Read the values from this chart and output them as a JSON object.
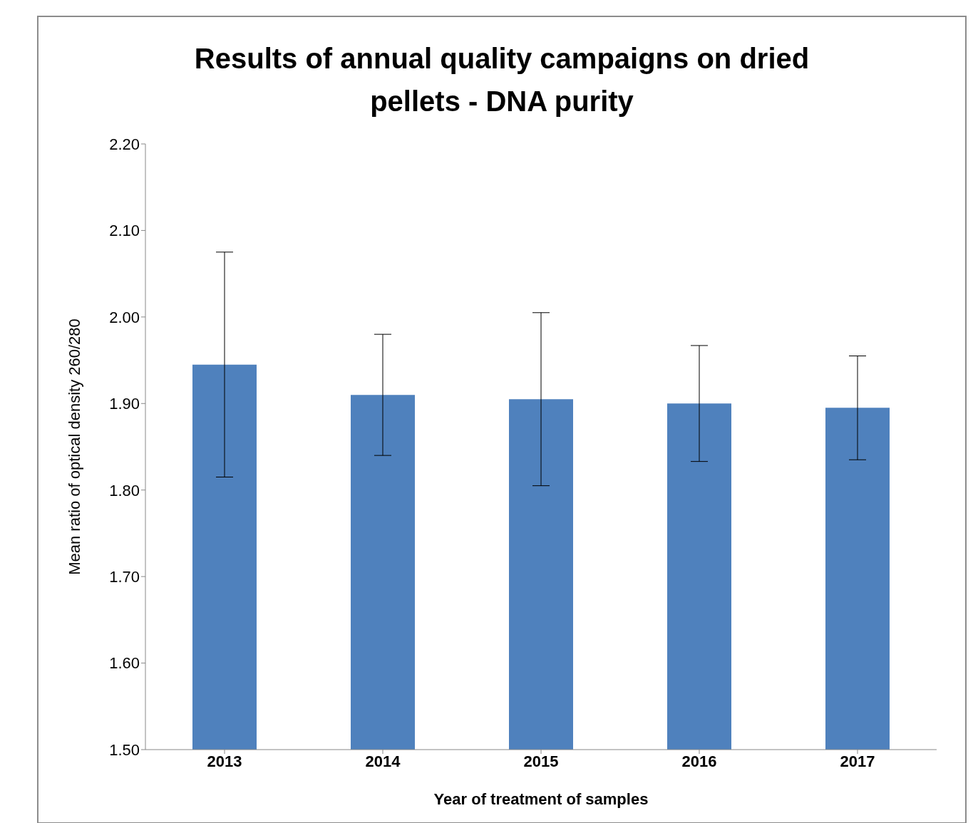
{
  "chart_data": {
    "type": "bar",
    "title": "Results of annual quality campaigns on dried pellets - DNA purity",
    "xlabel": "Year of treatment of samples",
    "ylabel": "Mean  ratio of optical density  260/280",
    "categories": [
      "2013",
      "2014",
      "2015",
      "2016",
      "2017"
    ],
    "values": [
      1.945,
      1.91,
      1.905,
      1.9,
      1.895
    ],
    "errors": [
      0.13,
      0.07,
      0.1,
      0.067,
      0.06
    ],
    "color": "#4f81bd",
    "ylim": [
      1.5,
      2.2
    ],
    "yticks": [
      {
        "value": 1.5,
        "label": "1.50"
      },
      {
        "value": 1.6,
        "label": "1.60"
      },
      {
        "value": 1.7,
        "label": "1.70"
      },
      {
        "value": 1.8,
        "label": "1.80"
      },
      {
        "value": 1.9,
        "label": "1.90"
      },
      {
        "value": 2.0,
        "label": "2.00"
      },
      {
        "value": 2.1,
        "label": "2.10"
      },
      {
        "value": 2.2,
        "label": "2.20"
      }
    ],
    "grid": false,
    "legend": false
  }
}
